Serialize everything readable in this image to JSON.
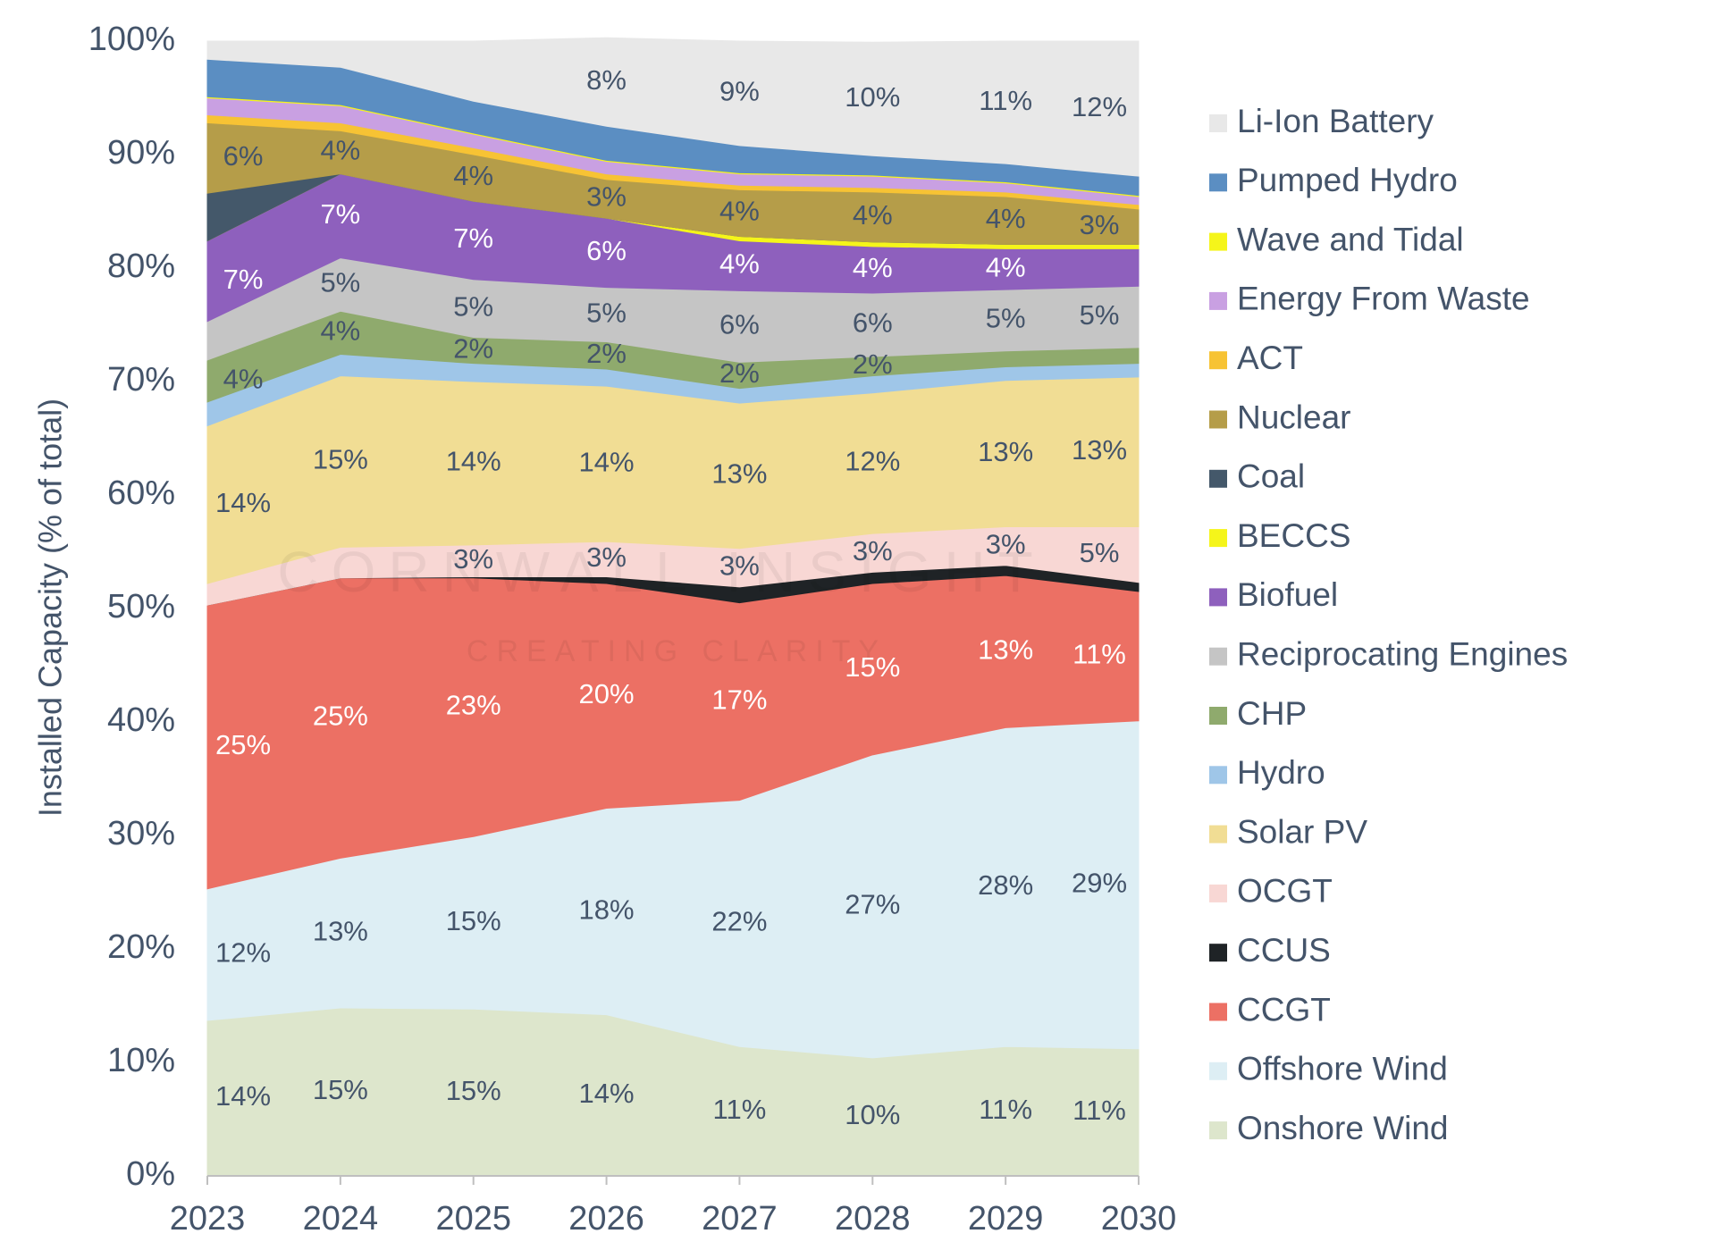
{
  "chart_data": {
    "type": "stacked_area",
    "y_axis_label": "Installed Capacity (% of total)",
    "watermark": [
      "CORNWALL INSIGHT",
      "CREATING CLARITY"
    ],
    "x": [
      2023,
      2024,
      2025,
      2026,
      2027,
      2028,
      2029,
      2030
    ],
    "xlim": [
      2023,
      2030
    ],
    "xticks": [
      2023,
      2024,
      2025,
      2026,
      2027,
      2028,
      2029,
      2030
    ],
    "ylim": [
      0,
      100
    ],
    "yticks": [
      {
        "value": 0,
        "label": "0%"
      },
      {
        "value": 10,
        "label": "10%"
      },
      {
        "value": 20,
        "label": "20%"
      },
      {
        "value": 30,
        "label": "30%"
      },
      {
        "value": 40,
        "label": "40%"
      },
      {
        "value": 50,
        "label": "50%"
      },
      {
        "value": 60,
        "label": "60%"
      },
      {
        "value": 70,
        "label": "70%"
      },
      {
        "value": 80,
        "label": "80%"
      },
      {
        "value": 90,
        "label": "90%"
      },
      {
        "value": 100,
        "label": "100%"
      }
    ],
    "series": [
      {
        "name": "Onshore Wind",
        "color": "#dde6cc",
        "values": [
          13.7,
          14.8,
          14.7,
          14.2,
          11.4,
          10.4,
          11.4,
          11.2
        ],
        "value_labels": [
          "14%",
          "15%",
          "15%",
          "14%",
          "11%",
          "10%",
          "11%",
          "11%"
        ]
      },
      {
        "name": "Offshore Wind",
        "color": "#ddeef4",
        "values": [
          11.6,
          13.2,
          15.2,
          18.2,
          21.7,
          26.7,
          28.1,
          28.9
        ],
        "value_labels": [
          "12%",
          "13%",
          "15%",
          "18%",
          "22%",
          "27%",
          "28%",
          "29%"
        ]
      },
      {
        "name": "CCGT",
        "color": "#ec7064",
        "values": [
          25.0,
          24.7,
          22.8,
          19.8,
          17.4,
          15.1,
          13.4,
          11.4
        ],
        "value_labels": [
          "25%",
          "25%",
          "23%",
          "20%",
          "17%",
          "15%",
          "13%",
          "11%"
        ]
      },
      {
        "name": "CCUS",
        "color": "#1f2326",
        "values": [
          0,
          0,
          0.1,
          0.6,
          1.4,
          1.0,
          0.9,
          0.8
        ],
        "value_labels": [
          null,
          null,
          null,
          null,
          null,
          null,
          null,
          null
        ]
      },
      {
        "name": "OCGT",
        "color": "#f8d7d4",
        "values": [
          1.9,
          2.7,
          2.8,
          3.1,
          3.4,
          3.4,
          3.4,
          4.9
        ],
        "value_labels": [
          null,
          null,
          "3%",
          "3%",
          "3%",
          "3%",
          "3%",
          "5%"
        ]
      },
      {
        "name": "Solar PV",
        "color": "#f1dd94",
        "values": [
          13.9,
          15.1,
          14.4,
          13.7,
          12.8,
          12.4,
          12.9,
          13.2
        ],
        "value_labels": [
          "14%",
          "15%",
          "14%",
          "14%",
          "13%",
          "12%",
          "13%",
          "13%"
        ]
      },
      {
        "name": "Hydro",
        "color": "#9fc6e8",
        "values": [
          2.1,
          1.9,
          1.6,
          1.5,
          1.3,
          1.5,
          1.2,
          1.2
        ],
        "value_labels": [
          null,
          null,
          null,
          null,
          null,
          null,
          null,
          null
        ]
      },
      {
        "name": "CHP",
        "color": "#8faa6d",
        "values": [
          3.7,
          3.8,
          2.3,
          2.4,
          2.3,
          1.7,
          1.4,
          1.4
        ],
        "value_labels": [
          "4%",
          "4%",
          "2%",
          "2%",
          "2%",
          "2%",
          null,
          null
        ]
      },
      {
        "name": "Reciprocating Engines",
        "color": "#c5c5c5",
        "values": [
          3.4,
          4.7,
          5.1,
          4.8,
          6.3,
          5.6,
          5.4,
          5.4
        ],
        "value_labels": [
          null,
          "5%",
          "5%",
          "5%",
          "6%",
          "6%",
          "5%",
          "5%"
        ]
      },
      {
        "name": "Biofuel",
        "color": "#8e60bd",
        "values": [
          7.1,
          7.4,
          6.9,
          6.1,
          4.4,
          4.1,
          3.6,
          3.3
        ],
        "value_labels": [
          "7%",
          "7%",
          "7%",
          "6%",
          "4%",
          "4%",
          "4%",
          null
        ]
      },
      {
        "name": "BECCS",
        "color": "#f5f51a",
        "values": [
          0,
          0,
          0,
          0,
          0.4,
          0.4,
          0.4,
          0.4
        ],
        "value_labels": [
          null,
          null,
          null,
          null,
          null,
          null,
          null,
          null
        ]
      },
      {
        "name": "Coal",
        "color": "#44586a",
        "values": [
          4.2,
          0,
          0,
          0,
          0,
          0,
          0,
          0
        ],
        "value_labels": [
          null,
          null,
          null,
          null,
          null,
          null,
          null,
          null
        ]
      },
      {
        "name": "Nuclear",
        "color": "#b59d49",
        "values": [
          6.2,
          3.8,
          4.1,
          3.4,
          4.1,
          4.4,
          4.2,
          3.1
        ],
        "value_labels": [
          "6%",
          "4%",
          "4%",
          "3%",
          "4%",
          "4%",
          "4%",
          "3%"
        ]
      },
      {
        "name": "ACT",
        "color": "#f7c334",
        "values": [
          0.7,
          0.7,
          0.6,
          0.5,
          0.4,
          0.4,
          0.4,
          0.4
        ],
        "value_labels": [
          null,
          null,
          null,
          null,
          null,
          null,
          null,
          null
        ]
      },
      {
        "name": "Energy From Waste",
        "color": "#c9a0e2",
        "values": [
          1.5,
          1.5,
          1.2,
          1.1,
          1.0,
          1.0,
          0.8,
          0.7
        ],
        "value_labels": [
          null,
          null,
          null,
          null,
          null,
          null,
          null,
          null
        ]
      },
      {
        "name": "Wave and Tidal",
        "color": "#f5f51a",
        "values": [
          0.1,
          0.1,
          0.1,
          0.1,
          0.1,
          0.1,
          0.1,
          0.1
        ],
        "value_labels": [
          null,
          null,
          null,
          null,
          null,
          null,
          null,
          null
        ]
      },
      {
        "name": "Pumped Hydro",
        "color": "#5b8ec2",
        "values": [
          3.3,
          3.3,
          2.8,
          3.0,
          2.4,
          1.7,
          1.6,
          1.7
        ],
        "value_labels": [
          null,
          null,
          null,
          null,
          null,
          null,
          null,
          null
        ]
      },
      {
        "name": "Li-Ion Battery",
        "color": "#e8e8e8",
        "values": [
          1.6,
          2.3,
          5.3,
          7.8,
          9.2,
          10.0,
          10.8,
          11.9
        ],
        "value_labels": [
          null,
          null,
          null,
          "8%",
          "9%",
          "10%",
          "11%",
          "12%"
        ]
      }
    ]
  }
}
